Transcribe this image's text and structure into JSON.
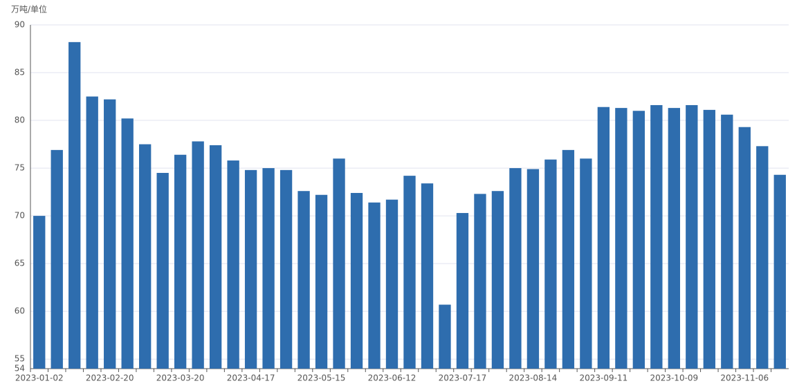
{
  "chart_data": {
    "type": "bar",
    "y_label": "万吨/单位",
    "categories": [
      "2023-01-02",
      null,
      null,
      null,
      "2023-02-20",
      null,
      null,
      null,
      "2023-03-20",
      null,
      null,
      null,
      "2023-04-17",
      null,
      null,
      null,
      "2023-05-15",
      null,
      null,
      null,
      "2023-06-12",
      null,
      null,
      null,
      "2023-07-17",
      null,
      null,
      null,
      "2023-08-14",
      null,
      null,
      null,
      "2023-09-11",
      null,
      null,
      null,
      "2023-10-09",
      null,
      null,
      null,
      "2023-11-06",
      null,
      null
    ],
    "values": [
      70.0,
      76.9,
      88.2,
      82.5,
      82.2,
      80.2,
      77.5,
      74.5,
      76.4,
      77.8,
      77.4,
      75.8,
      74.8,
      75.0,
      74.8,
      72.6,
      72.2,
      76.0,
      72.4,
      71.4,
      71.7,
      74.2,
      73.4,
      60.7,
      70.3,
      72.3,
      72.6,
      75.0,
      74.9,
      75.9,
      76.9,
      76.0,
      81.4,
      81.3,
      81.0,
      81.6,
      81.3,
      81.6,
      81.1,
      80.6,
      79.3,
      77.3,
      74.3
    ],
    "color": "#2e6dae",
    "ylim": [
      54,
      90
    ],
    "yticks": [
      54,
      55,
      60,
      65,
      70,
      75,
      80,
      85,
      90
    ],
    "grid": true
  }
}
